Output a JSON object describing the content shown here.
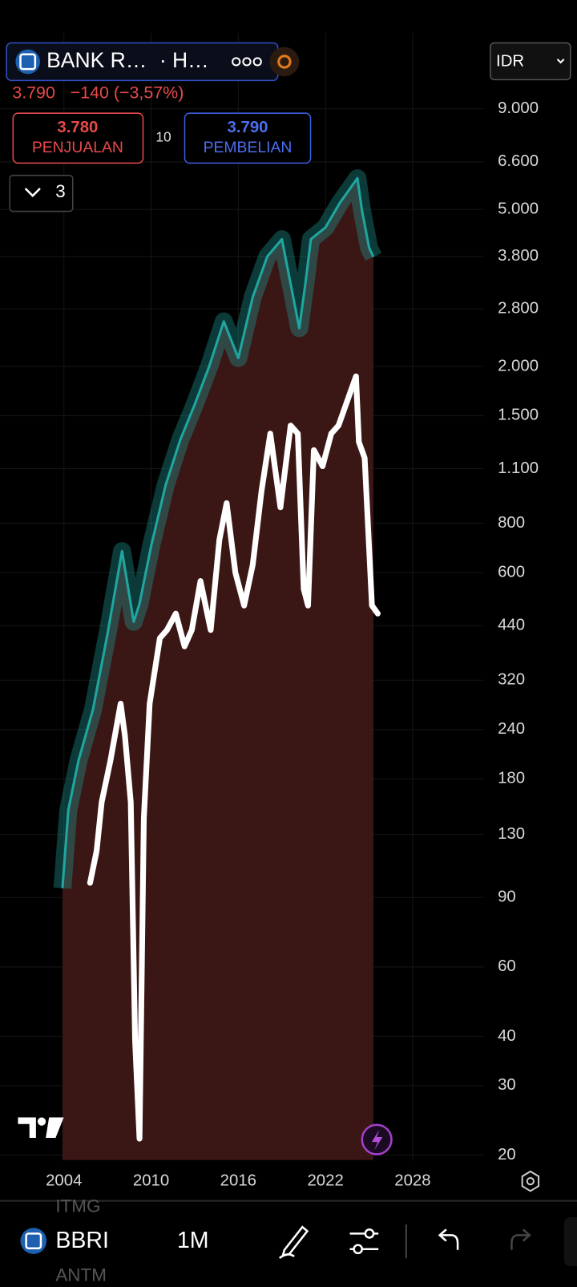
{
  "header": {
    "symbol": "BANK R…",
    "exchange": "· H…",
    "price": "3.790",
    "change": "−140 (−3,57%)",
    "sell_price": "3.780",
    "sell_label": "PENJUALAN",
    "spread": "10",
    "buy_price": "3.790",
    "buy_label": "PEMBELIAN",
    "indicator_count": "3",
    "currency": "IDR"
  },
  "chart_data": {
    "type": "line",
    "log_scale": true,
    "grid": true,
    "xlim": [
      1999.6,
      2032.9
    ],
    "xticks": [
      2004,
      2010,
      2016,
      2022,
      2028
    ],
    "ylim": [
      20,
      14000
    ],
    "yticks": [
      {
        "value": 9000,
        "label": "9.000"
      },
      {
        "value": 6600,
        "label": "6.600"
      },
      {
        "value": 5000,
        "label": "5.000"
      },
      {
        "value": 3800,
        "label": "3.800"
      },
      {
        "value": 2800,
        "label": "2.800"
      },
      {
        "value": 2000,
        "label": "2.000"
      },
      {
        "value": 1500,
        "label": "1.500"
      },
      {
        "value": 1100,
        "label": "1.100"
      },
      800,
      600,
      440,
      320,
      240,
      180,
      130,
      90,
      60,
      40,
      30,
      20
    ],
    "series": [
      {
        "color": "#1fa6a0",
        "x": [
          2003.9,
          2004.3,
          2005,
          2006,
          2007,
          2008,
          2008.8,
          2009.2,
          2010,
          2011,
          2012,
          2013,
          2014,
          2015,
          2016,
          2017,
          2018,
          2019,
          2020.2,
          2020.6,
          2021,
          2022,
          2023,
          2024.2,
          2024.5,
          2025,
          2025.3
        ],
        "values": [
          95,
          150,
          200,
          270,
          420,
          680,
          450,
          500,
          700,
          1000,
          1300,
          1600,
          2000,
          2600,
          2100,
          3000,
          3800,
          4200,
          2500,
          3200,
          4200,
          4500,
          5200,
          6000,
          5000,
          4000,
          3790
        ]
      },
      {
        "color": "#ffffff",
        "x": [
          2005.8,
          2006.25,
          2006.6,
          2007.2,
          2007.9,
          2008.2,
          2008.6,
          2008.9,
          2009.2,
          2009.5,
          2009.9,
          2010.6,
          2011.1,
          2011.7,
          2012.3,
          2012.8,
          2013.4,
          2014.1,
          2014.7,
          2015.2,
          2015.8,
          2016.4,
          2017.0,
          2017.6,
          2018.2,
          2018.9,
          2019.6,
          2020.1,
          2020.5,
          2020.8,
          2021.2,
          2021.8,
          2022.4,
          2022.9,
          2023.7,
          2024.1,
          2024.3,
          2024.7,
          2025.2,
          2025.6
        ],
        "values": [
          98,
          118,
          157,
          200,
          279,
          231,
          157,
          39,
          22,
          143,
          279,
          409,
          429,
          472,
          390,
          429,
          571,
          429,
          726,
          900,
          600,
          495,
          629,
          966,
          1350,
          878,
          1416,
          1350,
          545,
          495,
          1227,
          1116,
          1350,
          1416,
          1714,
          1886,
          1287,
          1170,
          495,
          472
        ]
      }
    ]
  },
  "toolbar": {
    "ticker": "BBRI",
    "interval": "1M",
    "watchlist_above": "ITMG",
    "watchlist_below": "ANTM"
  }
}
